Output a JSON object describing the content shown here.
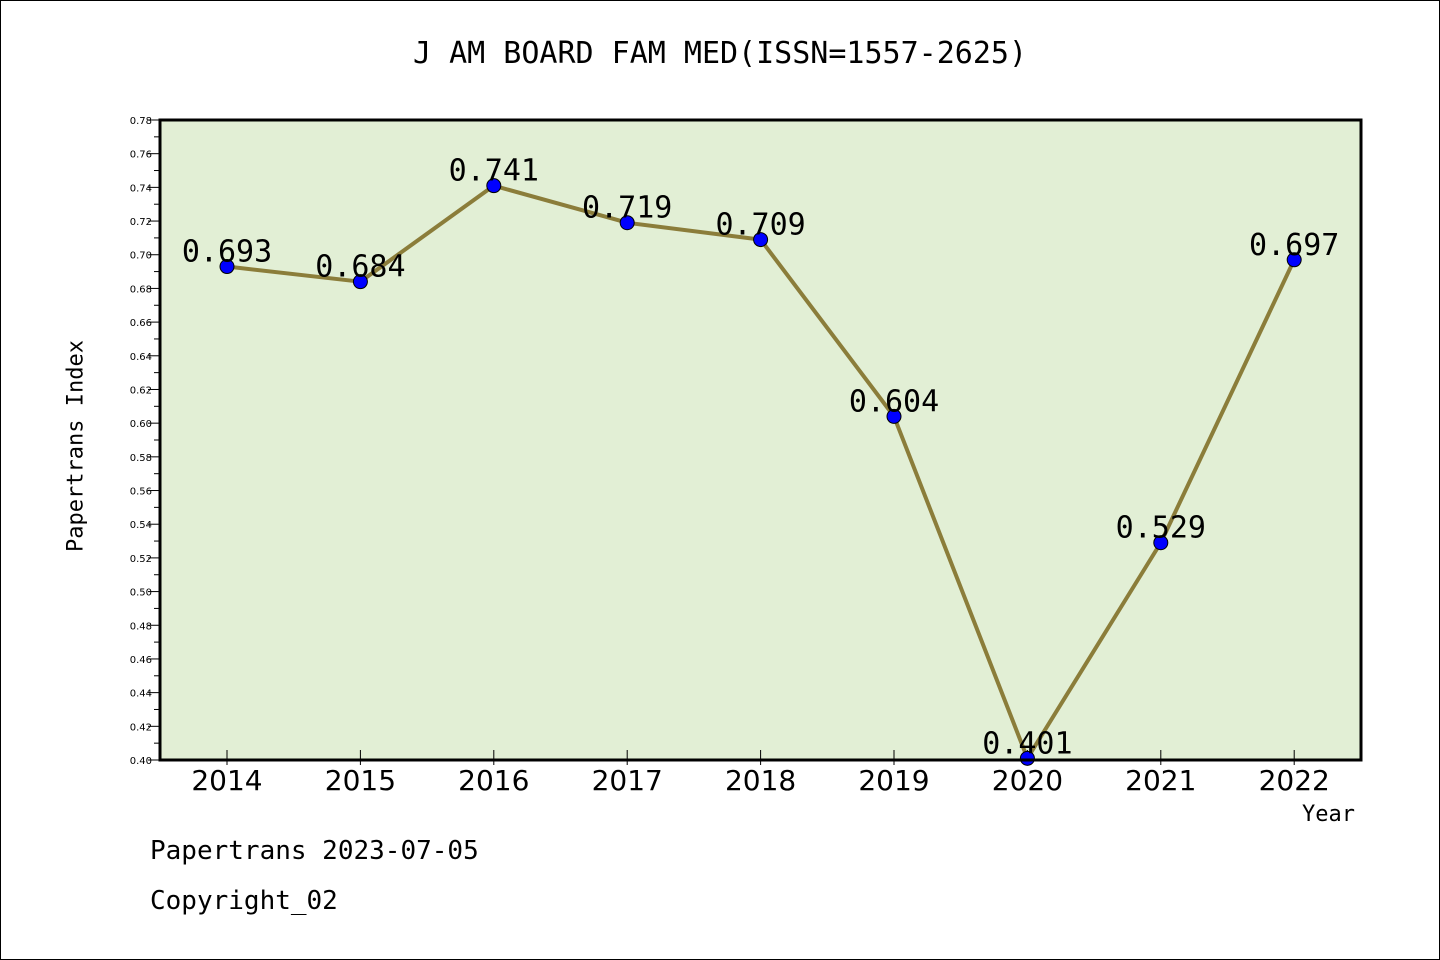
{
  "chart_data": {
    "type": "line",
    "title": "J AM BOARD FAM MED(ISSN=1557-2625)",
    "xlabel": "Year",
    "ylabel": "Papertrans Index",
    "categories": [
      "2014",
      "2015",
      "2016",
      "2017",
      "2018",
      "2019",
      "2020",
      "2021",
      "2022"
    ],
    "series": [
      {
        "values": [
          0.693,
          0.684,
          0.741,
          0.719,
          0.709,
          0.604,
          0.401,
          0.529,
          0.697
        ],
        "line_color": "#8b7d3a",
        "marker_color": "#0000ff"
      }
    ],
    "data_labels": [
      "0.693",
      "0.684",
      "0.741",
      "0.719",
      "0.709",
      "0.604",
      "0.401",
      "0.529",
      "0.697"
    ],
    "ylim": [
      0.4,
      0.78
    ],
    "y_ticks": [
      "0.40",
      "0.42",
      "0.44",
      "0.46",
      "0.48",
      "0.50",
      "0.52",
      "0.54",
      "0.56",
      "0.58",
      "0.60",
      "0.62",
      "0.64",
      "0.66",
      "0.68",
      "0.70",
      "0.72",
      "0.74",
      "0.76",
      "0.78"
    ],
    "plot_background": "#e2efd5",
    "grid": false,
    "legend": "none"
  },
  "footer": {
    "line1": "Papertrans 2023-07-05",
    "line2": "Copyright_02"
  }
}
